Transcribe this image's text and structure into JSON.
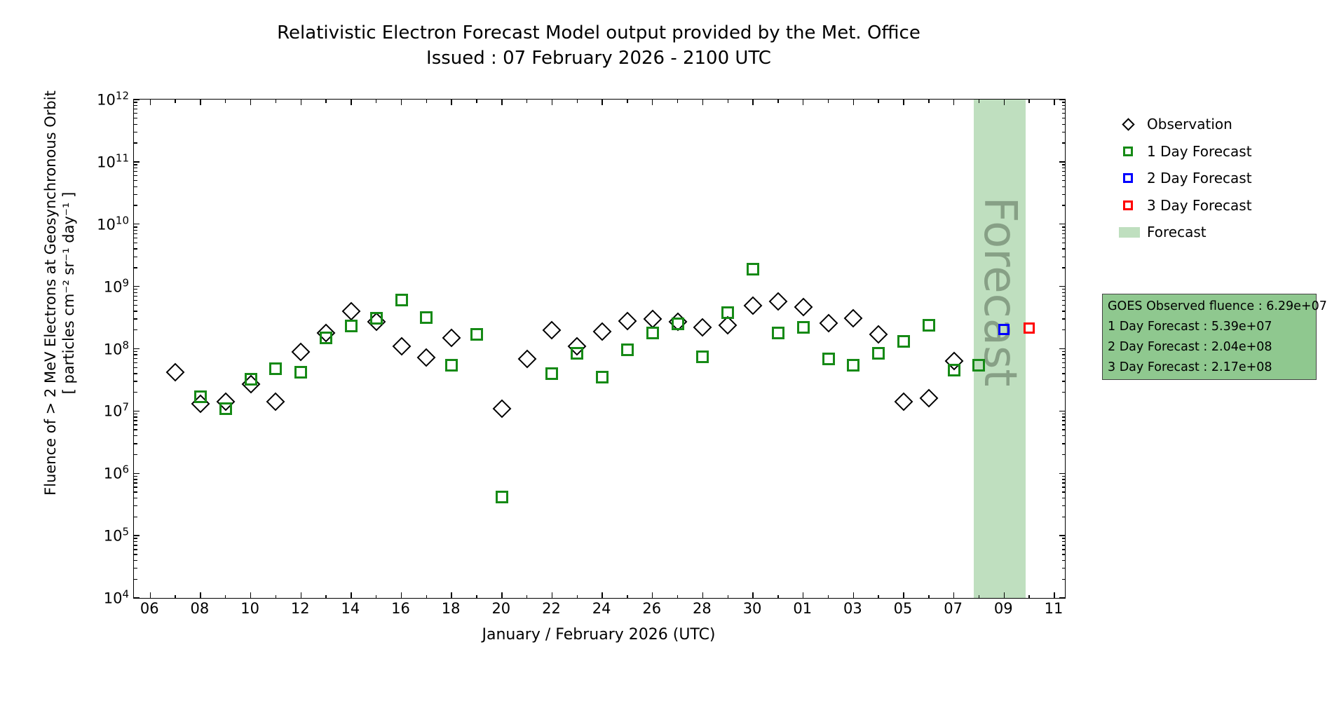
{
  "title": "Relativistic Electron Forecast Model output provided by the Met. Office",
  "subtitle": "Issued : 07 February 2026 - 2100 UTC",
  "chart_data": {
    "type": "scatter",
    "title": "Relativistic Electron Forecast Model output provided by the Met. Office",
    "subtitle": "Issued : 07 February 2026 - 2100 UTC",
    "xlabel": "January / February 2026 (UTC)",
    "ylabel_line1": "Fluence of > 2 MeV Electrons at Geosynchronous Orbit",
    "ylabel_line2": "[ particles cm⁻² sr⁻¹ day⁻¹ ]",
    "y_scale": "log",
    "ylim": [
      10000.0,
      1000000000000.0
    ],
    "grid": false,
    "legend_position": "outside-right",
    "x_axis": {
      "unit": "day of January 2026 (February = day + 31)",
      "xlim_days": [
        5.35,
        42.42
      ],
      "tick_days": [
        6,
        8,
        10,
        12,
        14,
        16,
        18,
        20,
        22,
        24,
        26,
        28,
        30,
        32,
        34,
        36,
        38,
        40,
        42
      ],
      "tick_labels": [
        "06",
        "08",
        "10",
        "12",
        "14",
        "16",
        "18",
        "20",
        "22",
        "24",
        "26",
        "28",
        "30",
        "01",
        "03",
        "05",
        "07",
        "09",
        "11"
      ]
    },
    "y_axis": {
      "tick_exponents": [
        12,
        11,
        10,
        9,
        8,
        7,
        6,
        5,
        4
      ],
      "tick_base": "10"
    },
    "series": [
      {
        "name": "Observation",
        "marker": "diamond",
        "color": "#000000",
        "size": 19,
        "points": [
          [
            7,
            42000000.0
          ],
          [
            8,
            13000000.0
          ],
          [
            9,
            14000000.0
          ],
          [
            10,
            27000000.0
          ],
          [
            11,
            14000000.0
          ],
          [
            12,
            90000000.0
          ],
          [
            13,
            180000000.0
          ],
          [
            14,
            400000000.0
          ],
          [
            15,
            270000000.0
          ],
          [
            16,
            110000000.0
          ],
          [
            17,
            72000000.0
          ],
          [
            18,
            150000000.0
          ],
          [
            20,
            11000000.0
          ],
          [
            21,
            68000000.0
          ],
          [
            22,
            200000000.0
          ],
          [
            23,
            110000000.0
          ],
          [
            24,
            190000000.0
          ],
          [
            25,
            280000000.0
          ],
          [
            26,
            300000000.0
          ],
          [
            27,
            270000000.0
          ],
          [
            28,
            220000000.0
          ],
          [
            29,
            240000000.0
          ],
          [
            30,
            490000000.0
          ],
          [
            31,
            570000000.0
          ],
          [
            32,
            470000000.0
          ],
          [
            33,
            260000000.0
          ],
          [
            34,
            310000000.0
          ],
          [
            35,
            170000000.0
          ],
          [
            36,
            14000000.0
          ],
          [
            37,
            16000000.0
          ],
          [
            38,
            62900000.0
          ]
        ]
      },
      {
        "name": "1 Day Forecast",
        "marker": "square",
        "color": "#168a16",
        "size": 18,
        "points": [
          [
            8,
            17000000.0
          ],
          [
            9,
            11000000.0
          ],
          [
            10,
            32000000.0
          ],
          [
            11,
            48000000.0
          ],
          [
            12,
            42000000.0
          ],
          [
            13,
            150000000.0
          ],
          [
            14,
            230000000.0
          ],
          [
            15,
            310000000.0
          ],
          [
            16,
            600000000.0
          ],
          [
            17,
            320000000.0
          ],
          [
            18,
            55000000.0
          ],
          [
            19,
            170000000.0
          ],
          [
            20,
            420000.0
          ],
          [
            22,
            40000000.0
          ],
          [
            23,
            85000000.0
          ],
          [
            24,
            35000000.0
          ],
          [
            25,
            95000000.0
          ],
          [
            26,
            180000000.0
          ],
          [
            27,
            250000000.0
          ],
          [
            28,
            75000000.0
          ],
          [
            29,
            380000000.0
          ],
          [
            30,
            1900000000.0
          ],
          [
            31,
            180000000.0
          ],
          [
            32,
            220000000.0
          ],
          [
            33,
            68000000.0
          ],
          [
            34,
            55000000.0
          ],
          [
            35,
            85000000.0
          ],
          [
            36,
            130000000.0
          ],
          [
            37,
            240000000.0
          ],
          [
            38,
            45000000.0
          ],
          [
            39,
            53900000.0
          ]
        ]
      },
      {
        "name": "2 Day Forecast",
        "marker": "square",
        "color": "#0000ff",
        "size": 16,
        "points": [
          [
            40,
            204000000.0
          ]
        ]
      },
      {
        "name": "3 Day Forecast",
        "marker": "square",
        "color": "#ff0000",
        "size": 16,
        "points": [
          [
            41,
            217000000.0
          ]
        ]
      }
    ],
    "forecast_band": {
      "label": "Forecast",
      "start_day": 38.8,
      "end_day": 40.85,
      "color": "#bfdfbf",
      "watermark_color": "#87a086"
    }
  },
  "legend": {
    "items": [
      {
        "label": "Observation",
        "type": "diamond",
        "color": "#000000"
      },
      {
        "label": "1 Day Forecast",
        "type": "square",
        "color": "#168a16"
      },
      {
        "label": "2 Day Forecast",
        "type": "square",
        "color": "#0000ff"
      },
      {
        "label": "3 Day Forecast",
        "type": "square",
        "color": "#ff0000"
      },
      {
        "label": "Forecast",
        "type": "band",
        "color": "#bfdfbf"
      }
    ]
  },
  "info_box": {
    "bg_color": "#8fc88f",
    "border_color": "#444444",
    "lines": [
      "GOES Observed fluence : 6.29e+07",
      "1 Day Forecast : 5.39e+07",
      "2 Day Forecast : 2.04e+08",
      "3 Day Forecast : 2.17e+08"
    ]
  }
}
